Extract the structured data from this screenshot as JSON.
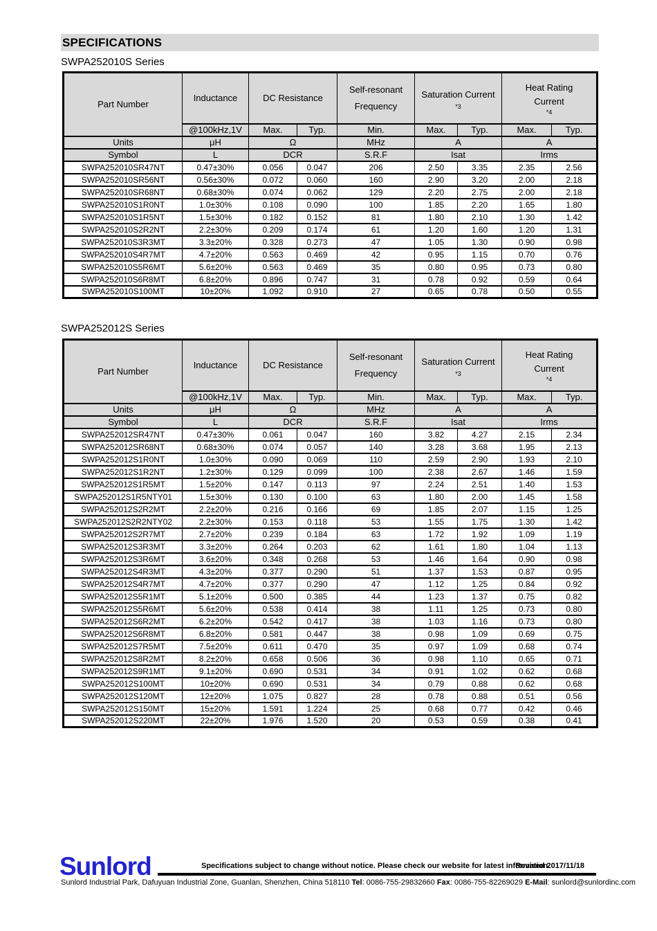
{
  "page": {
    "title": "SPECIFICATIONS",
    "series": [
      {
        "name": "SWPA252010S Series"
      },
      {
        "name": "SWPA252012S Series"
      }
    ]
  },
  "colors": {
    "header_gray": "#d9d9d9",
    "logo_blue": "#2424cc"
  },
  "header": {
    "part_number": "Part Number",
    "inductance": "Inductance",
    "inductance_condition": "@100kHz,1V",
    "dc_resistance": "DC Resistance",
    "self_resonant_line1": "Self-resonant",
    "self_resonant_line2": "Frequency",
    "saturation_current": "Saturation Current",
    "saturation_note": "*3",
    "heat_rating_line1": "Heat Rating",
    "heat_rating_line2": "Current",
    "heat_rating_note": "*4",
    "max": "Max.",
    "typ": "Typ.",
    "min": "Min.",
    "units_label": "Units",
    "symbol_label": "Symbol",
    "units": [
      "μH",
      "Ω",
      "MHz",
      "A",
      "A"
    ],
    "symbols": [
      "L",
      "DCR",
      "S.R.F",
      "Isat",
      "Irms"
    ]
  },
  "table1": {
    "rows": [
      [
        "SWPA252010SR47NT",
        "0.47±30%",
        "0.056",
        "0.047",
        "206",
        "2.50",
        "3.35",
        "2.35",
        "2.56"
      ],
      [
        "SWPA252010SR56NT",
        "0.56±30%",
        "0.072",
        "0.060",
        "160",
        "2.90",
        "3.20",
        "2.00",
        "2.18"
      ],
      [
        "SWPA252010SR68NT",
        "0.68±30%",
        "0.074",
        "0.062",
        "129",
        "2.20",
        "2.75",
        "2.00",
        "2.18"
      ],
      [
        "SWPA252010S1R0NT",
        "1.0±30%",
        "0.108",
        "0.090",
        "100",
        "1.85",
        "2.20",
        "1.65",
        "1.80"
      ],
      [
        "SWPA252010S1R5NT",
        "1.5±30%",
        "0.182",
        "0.152",
        "81",
        "1.80",
        "2.10",
        "1.30",
        "1.42"
      ],
      [
        "SWPA252010S2R2NT",
        "2.2±30%",
        "0.209",
        "0.174",
        "61",
        "1.20",
        "1.60",
        "1.20",
        "1.31"
      ],
      [
        "SWPA252010S3R3MT",
        "3.3±20%",
        "0.328",
        "0.273",
        "47",
        "1.05",
        "1.30",
        "0.90",
        "0.98"
      ],
      [
        "SWPA252010S4R7MT",
        "4.7±20%",
        "0.563",
        "0.469",
        "42",
        "0.95",
        "1.15",
        "0.70",
        "0.76"
      ],
      [
        "SWPA252010S5R6MT",
        "5.6±20%",
        "0.563",
        "0.469",
        "35",
        "0.80",
        "0.95",
        "0.73",
        "0.80"
      ],
      [
        "SWPA252010S6R8MT",
        "6.8±20%",
        "0.896",
        "0.747",
        "31",
        "0.78",
        "0.92",
        "0.59",
        "0.64"
      ],
      [
        "SWPA252010S100MT",
        "10±20%",
        "1.092",
        "0.910",
        "27",
        "0.65",
        "0.78",
        "0.50",
        "0.55"
      ]
    ]
  },
  "table2": {
    "rows": [
      [
        "SWPA252012SR47NT",
        "0.47±30%",
        "0.061",
        "0.047",
        "160",
        "3.82",
        "4.27",
        "2.15",
        "2.34"
      ],
      [
        "SWPA252012SR68NT",
        "0.68±30%",
        "0.074",
        "0.057",
        "140",
        "3.28",
        "3.68",
        "1.95",
        "2.13"
      ],
      [
        "SWPA252012S1R0NT",
        "1.0±30%",
        "0.090",
        "0.069",
        "110",
        "2.59",
        "2.90",
        "1.93",
        "2.10"
      ],
      [
        "SWPA252012S1R2NT",
        "1.2±30%",
        "0.129",
        "0.099",
        "100",
        "2.38",
        "2.67",
        "1.46",
        "1.59"
      ],
      [
        "SWPA252012S1R5MT",
        "1.5±20%",
        "0.147",
        "0.113",
        "97",
        "2.24",
        "2.51",
        "1.40",
        "1.53"
      ],
      [
        "SWPA252012S1R5NTY01",
        "1.5±30%",
        "0.130",
        "0.100",
        "63",
        "1.80",
        "2.00",
        "1.45",
        "1.58"
      ],
      [
        "SWPA252012S2R2MT",
        "2.2±20%",
        "0.216",
        "0.166",
        "69",
        "1.85",
        "2.07",
        "1.15",
        "1.25"
      ],
      [
        "SWPA252012S2R2NTY02",
        "2.2±30%",
        "0.153",
        "0.118",
        "53",
        "1.55",
        "1.75",
        "1.30",
        "1.42"
      ],
      [
        "SWPA252012S2R7MT",
        "2.7±20%",
        "0.239",
        "0.184",
        "63",
        "1.72",
        "1.92",
        "1.09",
        "1.19"
      ],
      [
        "SWPA252012S3R3MT",
        "3.3±20%",
        "0.264",
        "0.203",
        "62",
        "1.61",
        "1.80",
        "1.04",
        "1.13"
      ],
      [
        "SWPA252012S3R6MT",
        "3.6±20%",
        "0.348",
        "0.268",
        "53",
        "1.46",
        "1.64",
        "0.90",
        "0.98"
      ],
      [
        "SWPA252012S4R3MT",
        "4.3±20%",
        "0.377",
        "0.290",
        "51",
        "1.37",
        "1.53",
        "0.87",
        "0.95"
      ],
      [
        "SWPA252012S4R7MT",
        "4.7±20%",
        "0.377",
        "0.290",
        "47",
        "1.12",
        "1.25",
        "0.84",
        "0.92"
      ],
      [
        "SWPA252012S5R1MT",
        "5.1±20%",
        "0.500",
        "0.385",
        "44",
        "1.23",
        "1.37",
        "0.75",
        "0.82"
      ],
      [
        "SWPA252012S5R6MT",
        "5.6±20%",
        "0.538",
        "0.414",
        "38",
        "1.11",
        "1.25",
        "0.73",
        "0.80"
      ],
      [
        "SWPA252012S6R2MT",
        "6.2±20%",
        "0.542",
        "0.417",
        "38",
        "1.03",
        "1.16",
        "0.73",
        "0.80"
      ],
      [
        "SWPA252012S6R8MT",
        "6.8±20%",
        "0.581",
        "0.447",
        "38",
        "0.98",
        "1.09",
        "0.69",
        "0.75"
      ],
      [
        "SWPA252012S7R5MT",
        "7.5±20%",
        "0.611",
        "0.470",
        "35",
        "0.97",
        "1.09",
        "0.68",
        "0.74"
      ],
      [
        "SWPA252012S8R2MT",
        "8.2±20%",
        "0.658",
        "0.506",
        "36",
        "0.98",
        "1.10",
        "0.65",
        "0.71"
      ],
      [
        "SWPA252012S9R1MT",
        "9.1±20%",
        "0.690",
        "0.531",
        "34",
        "0.91",
        "1.02",
        "0.62",
        "0.68"
      ],
      [
        "SWPA252012S100MT",
        "10±20%",
        "0.690",
        "0.531",
        "34",
        "0.79",
        "0.88",
        "0.62",
        "0.68"
      ],
      [
        "SWPA252012S120MT",
        "12±20%",
        "1.075",
        "0.827",
        "28",
        "0.78",
        "0.88",
        "0.51",
        "0.56"
      ],
      [
        "SWPA252012S150MT",
        "15±20%",
        "1.591",
        "1.224",
        "25",
        "0.68",
        "0.77",
        "0.42",
        "0.46"
      ],
      [
        "SWPA252012S220MT",
        "22±20%",
        "1.976",
        "1.520",
        "20",
        "0.53",
        "0.59",
        "0.38",
        "0.41"
      ]
    ]
  },
  "footer": {
    "logo": "Sunlord",
    "notice": "Specifications subject to change without notice. Please check our website for latest information.",
    "revised": "Revised 2017/11/18",
    "address": "Sunlord Industrial Park, Dafuyuan Industrial Zone, Guanlan, Shenzhen, China 518110",
    "tel_label": "Tel",
    "tel_value": ": 0086-755-29832660",
    "fax_label": "Fax",
    "fax_value": ": 0086-755-82269029",
    "email_label": "E-Mail",
    "email_value": ": sunlord@sunlordinc.com"
  }
}
